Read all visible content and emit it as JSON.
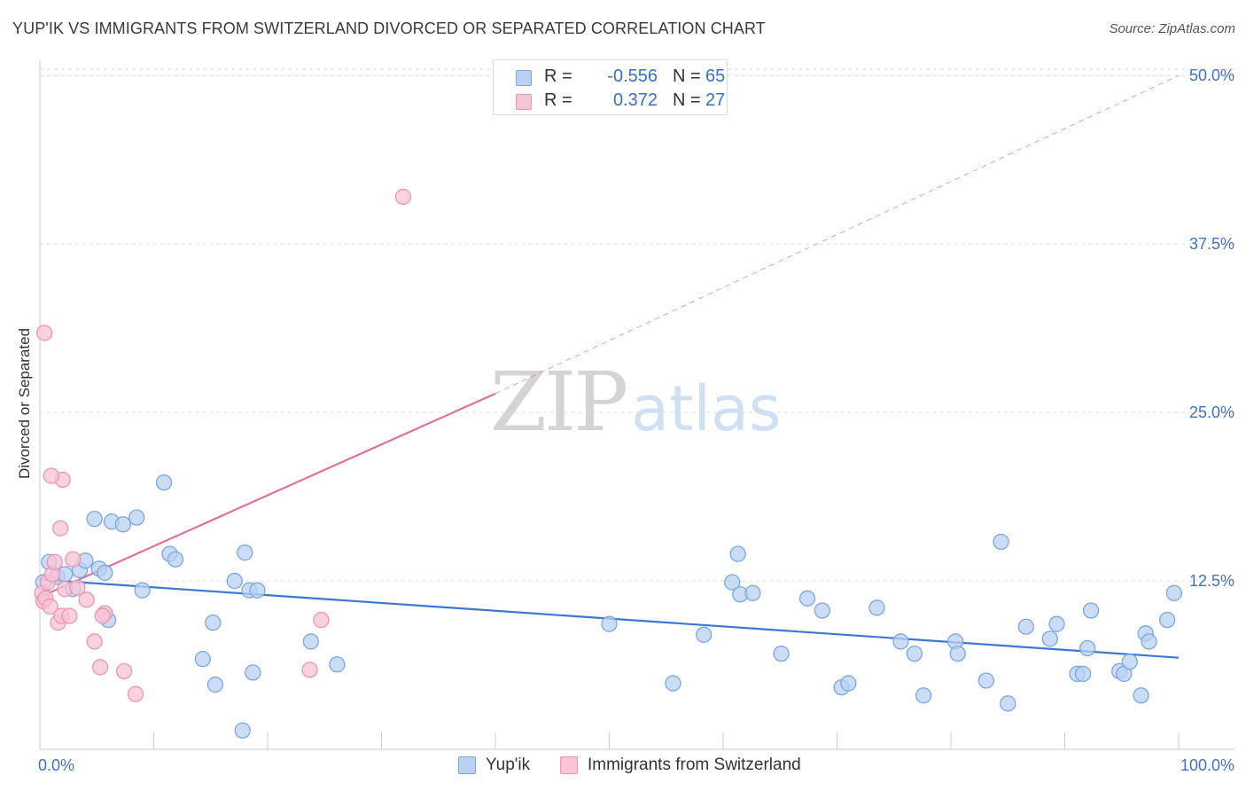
{
  "title": "YUP'IK VS IMMIGRANTS FROM SWITZERLAND DIVORCED OR SEPARATED CORRELATION CHART",
  "source": "Source: ZipAtlas.com",
  "watermark": {
    "zip": "ZIP",
    "atlas": "atlas"
  },
  "colors": {
    "blue": "#3a78d2",
    "blue_fill": "#b9d1f2",
    "blue_stroke": "#7aa6e2",
    "pink": "#e0709a",
    "pink_fill": "#f8c3d4",
    "pink_stroke": "#ee93b3",
    "axis_text": "#3f72c4",
    "grid": "#dddddd"
  },
  "legend_top": [
    {
      "r_label": "R =",
      "r_value": "-0.556",
      "n_label": "N =",
      "n_value": "65"
    },
    {
      "r_label": "R =",
      "r_value": "0.372",
      "n_label": "N =",
      "n_value": "27"
    }
  ],
  "legend_bottom": [
    "Yup'ik",
    "Immigrants from Switzerland"
  ],
  "chart_data": {
    "type": "scatter",
    "title": "YUP'IK VS IMMIGRANTS FROM SWITZERLAND DIVORCED OR SEPARATED CORRELATION CHART",
    "xlabel": "",
    "ylabel": "Divorced or Separated",
    "xlim": [
      0,
      100
    ],
    "ylim": [
      0,
      51
    ],
    "x_tick_labels": [
      "0.0%",
      "100.0%"
    ],
    "y_ticks": [
      12.5,
      25.0,
      37.5,
      50.0
    ],
    "y_tick_labels": [
      "12.5%",
      "25.0%",
      "37.5%",
      "50.0%"
    ],
    "grid": true,
    "legend_placement": "top-center",
    "series": [
      {
        "name": "Yup'ik",
        "color": "#3a78d2",
        "trend": {
          "x": [
            0,
            100
          ],
          "y": [
            12.6,
            6.8
          ]
        },
        "x": [
          0.3,
          0.8,
          1.5,
          2.2,
          2.9,
          3.5,
          4.0,
          4.8,
          5.2,
          5.7,
          6.0,
          6.3,
          7.3,
          8.5,
          9.0,
          10.9,
          11.4,
          11.9,
          14.3,
          15.2,
          15.4,
          18.0,
          18.4,
          17.1,
          17.8,
          18.7,
          19.1,
          23.8,
          26.1,
          50.0,
          55.6,
          58.3,
          60.8,
          61.3,
          61.5,
          62.6,
          65.1,
          67.4,
          68.7,
          70.4,
          71.0,
          73.5,
          75.6,
          76.8,
          77.6,
          80.4,
          80.6,
          83.1,
          84.4,
          85.0,
          86.6,
          88.7,
          89.3,
          91.1,
          91.6,
          92.0,
          92.3,
          94.8,
          95.2,
          95.7,
          96.7,
          97.1,
          97.4,
          99.0,
          99.6
        ],
        "y": [
          12.4,
          13.9,
          12.8,
          13.0,
          11.9,
          13.3,
          14.0,
          17.1,
          13.4,
          13.1,
          9.6,
          16.9,
          16.7,
          17.2,
          11.8,
          19.8,
          14.5,
          14.1,
          6.7,
          9.4,
          4.8,
          14.6,
          11.8,
          12.5,
          1.4,
          5.7,
          11.8,
          8.0,
          6.3,
          9.3,
          4.9,
          8.5,
          12.4,
          14.5,
          11.5,
          11.6,
          7.1,
          11.2,
          10.3,
          4.6,
          4.9,
          10.5,
          8.0,
          7.1,
          4.0,
          8.0,
          7.1,
          5.1,
          15.4,
          3.4,
          9.1,
          8.2,
          9.3,
          5.6,
          5.6,
          7.5,
          10.3,
          5.8,
          5.6,
          6.5,
          4.0,
          8.6,
          8.0,
          9.6,
          11.6
        ]
      },
      {
        "name": "Immigrants from Switzerland",
        "color": "#e0709a",
        "trend": {
          "x": [
            0,
            40
          ],
          "y": [
            11.3,
            26.4
          ],
          "dashed_to": {
            "x": 100,
            "y": 50.0
          }
        },
        "x": [
          0.2,
          0.3,
          0.5,
          0.7,
          0.9,
          1.1,
          1.3,
          1.6,
          1.9,
          2.2,
          2.6,
          2.9,
          3.3,
          4.1,
          4.8,
          5.3,
          5.7,
          7.4,
          8.4,
          2.0,
          1.8,
          5.5,
          23.7,
          24.7,
          31.9,
          0.4,
          1.0
        ],
        "y": [
          11.6,
          11.0,
          11.2,
          12.4,
          10.6,
          13.0,
          13.9,
          9.4,
          9.9,
          11.9,
          9.9,
          14.1,
          12.0,
          11.1,
          8.0,
          6.1,
          10.1,
          5.8,
          4.1,
          20.0,
          16.4,
          9.9,
          5.9,
          9.6,
          41.0,
          30.9,
          20.3
        ]
      }
    ]
  }
}
